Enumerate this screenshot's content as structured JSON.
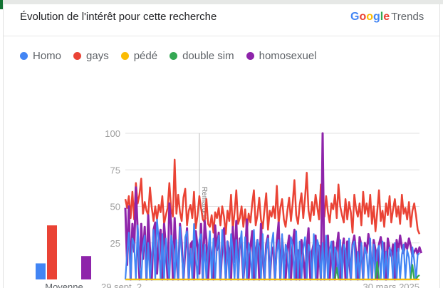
{
  "header": {
    "title": "Évolution de l'intérêt pour cette recherche",
    "brand": {
      "letters": [
        {
          "ch": "G",
          "color": "#4285F4"
        },
        {
          "ch": "o",
          "color": "#EA4335"
        },
        {
          "ch": "o",
          "color": "#FBBC05"
        },
        {
          "ch": "g",
          "color": "#4285F4"
        },
        {
          "ch": "l",
          "color": "#34A853"
        },
        {
          "ch": "e",
          "color": "#EA4335"
        }
      ],
      "product": "Trends"
    }
  },
  "colors": {
    "Homo": "#4285f4",
    "gays": "#ea4335",
    "pédé": "#fbbc04",
    "double sim": "#34a853",
    "homosexuel": "#8e24aa",
    "grid": "#e0e0e0",
    "axis_text": "#9e9e9e"
  },
  "chart_data": {
    "type": "line",
    "title": "",
    "xlabel": "",
    "ylabel": "",
    "ylim": [
      0,
      100
    ],
    "yticks": [
      25,
      50,
      75,
      100
    ],
    "x_tick_labels": [
      "29 sept. 2",
      "30 mars 2025"
    ],
    "annotation": "Remarque",
    "legend": [
      "Homo",
      "gays",
      "pédé",
      "double sim",
      "homosexuel"
    ],
    "legend_position": "top-left",
    "average": {
      "label": "Moyenne",
      "values": [
        {
          "name": "Homo",
          "value": 11
        },
        {
          "name": "gays",
          "value": 37
        },
        {
          "name": "pédé",
          "value": 0
        },
        {
          "name": "double sim",
          "value": 0
        },
        {
          "name": "homosexuel",
          "value": 16
        }
      ]
    },
    "series": [
      {
        "name": "gays",
        "values": [
          55,
          49,
          57,
          42,
          60,
          41,
          66,
          52,
          58,
          69,
          45,
          53,
          47,
          44,
          63,
          49,
          40,
          50,
          41,
          51,
          46,
          57,
          38,
          44,
          49,
          66,
          48,
          43,
          82,
          45,
          58,
          46,
          40,
          56,
          62,
          37,
          47,
          51,
          42,
          60,
          35,
          44,
          57,
          49,
          41,
          39,
          55,
          38,
          36,
          44,
          32,
          46,
          42,
          49,
          37,
          50,
          43,
          31,
          47,
          40,
          58,
          34,
          46,
          61,
          38,
          42,
          50,
          36,
          48,
          33,
          45,
          39,
          52,
          61,
          37,
          44,
          56,
          41,
          35,
          48,
          59,
          34,
          47,
          43,
          50,
          42,
          64,
          38,
          49,
          55,
          41,
          36,
          47,
          56,
          40,
          52,
          68,
          44,
          38,
          51,
          59,
          42,
          56,
          73,
          47,
          40,
          53,
          44,
          58,
          49,
          41,
          65,
          51,
          43,
          57,
          46,
          39,
          52,
          48,
          58,
          42,
          65,
          50,
          44,
          39,
          55,
          41,
          53,
          46,
          32,
          58,
          48,
          43,
          52,
          37,
          60,
          45,
          52,
          43,
          58,
          38,
          50,
          33,
          46,
          61,
          40,
          47,
          36,
          52,
          44,
          57,
          39,
          48,
          55,
          43,
          50,
          38,
          58,
          45,
          49,
          41,
          53,
          36,
          47,
          52,
          44,
          34,
          31
        ]
      },
      {
        "name": "homosexuel",
        "values": [
          49,
          10,
          50,
          0,
          38,
          19,
          63,
          33,
          0,
          38,
          14,
          36,
          0,
          44,
          20,
          0,
          34,
          39,
          4,
          28,
          34,
          0,
          38,
          22,
          0,
          52,
          38,
          0,
          42,
          15,
          0,
          38,
          25,
          0,
          20,
          35,
          0,
          24,
          26,
          0,
          33,
          22,
          4,
          38,
          0,
          40,
          27,
          0,
          24,
          16,
          0,
          37,
          20,
          32,
          0,
          21,
          35,
          0,
          26,
          19,
          0,
          36,
          12,
          40,
          0,
          28,
          22,
          0,
          16,
          41,
          0,
          22,
          33,
          0,
          18,
          27,
          0,
          38,
          16,
          0,
          24,
          30,
          0,
          19,
          22,
          0,
          26,
          39,
          0,
          28,
          13,
          0,
          21,
          30,
          0,
          24,
          34,
          0,
          20,
          0,
          27,
          16,
          0,
          22,
          35,
          0,
          19,
          25,
          30,
          0,
          23,
          0,
          100,
          0,
          24,
          30,
          0,
          17,
          26,
          0,
          22,
          32,
          0,
          19,
          28,
          0,
          26,
          15,
          0,
          24,
          30,
          18,
          0,
          29,
          23,
          0,
          25,
          18,
          31,
          22,
          0,
          27,
          20,
          0,
          24,
          29,
          19,
          25,
          0,
          28,
          21,
          16,
          24,
          0,
          27,
          19,
          30,
          22,
          18,
          25,
          21,
          28,
          23,
          16,
          19,
          21,
          17,
          22,
          18
        ]
      },
      {
        "name": "Homo",
        "values": [
          0,
          18,
          32,
          0,
          28,
          24,
          0,
          37,
          9,
          0,
          22,
          30,
          0,
          25,
          0,
          15,
          34,
          0,
          41,
          26,
          0,
          31,
          0,
          28,
          12,
          0,
          30,
          23,
          0,
          27,
          0,
          36,
          18,
          0,
          29,
          33,
          0,
          21,
          0,
          38,
          16,
          0,
          27,
          31,
          0,
          24,
          0,
          19,
          33,
          0,
          28,
          0,
          22,
          30,
          0,
          34,
          17,
          0,
          26,
          0,
          31,
          20,
          0,
          27,
          0,
          23,
          33,
          0,
          29,
          0,
          25,
          18,
          0,
          34,
          0,
          27,
          22,
          0,
          31,
          0,
          20,
          28,
          0,
          24,
          32,
          0,
          19,
          27,
          0,
          31,
          0,
          24,
          18,
          0,
          29,
          23,
          0,
          33,
          0,
          26,
          0,
          21,
          29,
          0,
          24,
          19,
          0,
          31,
          0,
          27,
          22,
          0,
          25,
          0,
          30,
          0,
          20,
          26,
          0,
          22,
          18,
          0,
          27,
          0,
          24,
          20,
          0,
          28,
          0,
          23,
          26,
          0,
          19,
          0,
          25,
          0,
          22,
          17,
          0,
          28,
          0,
          24,
          0,
          20,
          23,
          0,
          26,
          0,
          19,
          0,
          22,
          18,
          0,
          25,
          0,
          21,
          0,
          17,
          24,
          0,
          20,
          15,
          0,
          22,
          13,
          0,
          17,
          18
        ]
      },
      {
        "name": "double sim",
        "values": [
          0,
          0,
          0,
          0,
          0,
          0,
          0,
          0,
          0,
          0,
          0,
          0,
          0,
          0,
          0,
          0,
          0,
          0,
          0,
          0,
          0,
          0,
          0,
          0,
          0,
          0,
          0,
          0,
          0,
          0,
          0,
          0,
          0,
          0,
          0,
          0,
          0,
          0,
          0,
          0,
          0,
          0,
          0,
          0,
          0,
          0,
          0,
          0,
          0,
          0,
          0,
          0,
          0,
          0,
          0,
          0,
          0,
          0,
          0,
          0,
          0,
          0,
          0,
          0,
          0,
          0,
          0,
          0,
          0,
          0,
          0,
          0,
          0,
          0,
          0,
          0,
          0,
          0,
          0,
          0,
          0,
          0,
          0,
          0,
          0,
          0,
          0,
          0,
          0,
          0,
          0,
          0,
          0,
          0,
          0,
          0,
          0,
          0,
          0,
          0,
          0,
          0,
          0,
          0,
          0,
          0,
          0,
          0,
          0,
          0,
          0,
          0,
          0,
          0,
          0,
          0,
          0,
          0,
          0,
          0,
          8,
          0,
          0,
          0,
          0,
          0,
          0,
          0,
          0,
          0,
          0,
          0,
          0,
          0,
          0,
          0,
          0,
          0,
          0,
          0,
          0,
          0,
          0,
          12,
          0,
          0,
          0,
          0,
          0,
          0,
          0,
          0,
          0,
          0,
          0,
          0,
          0,
          0,
          0,
          0,
          0,
          0,
          0,
          10,
          0,
          0,
          2,
          3
        ]
      },
      {
        "name": "pédé",
        "values": [
          0,
          0,
          0,
          0,
          0,
          0,
          0,
          0,
          0,
          0,
          0,
          0,
          0,
          0,
          0,
          0,
          0,
          0,
          0,
          0,
          0,
          0,
          0,
          0,
          0,
          0,
          0,
          0,
          0,
          0,
          0,
          0,
          0,
          0,
          0,
          0,
          0,
          0,
          0,
          0,
          0,
          0,
          0,
          0,
          0,
          0,
          0,
          0,
          0,
          0,
          0,
          0,
          0,
          0,
          0,
          0,
          0,
          0,
          0,
          0,
          0,
          0,
          0,
          0,
          0,
          0,
          0,
          0,
          0,
          0,
          0,
          0,
          0,
          0,
          0,
          0,
          0,
          0,
          0,
          0,
          0,
          0,
          0,
          0,
          0,
          0,
          0,
          0,
          0,
          0,
          0,
          0,
          0,
          0,
          0,
          0,
          0,
          0,
          0,
          0,
          0,
          0,
          0,
          0,
          0,
          0,
          0,
          0,
          0,
          0,
          0,
          0,
          0,
          0,
          0,
          0,
          0,
          0,
          0,
          0,
          0,
          0,
          0,
          0,
          0,
          0,
          0,
          0,
          0,
          0,
          0,
          0,
          0,
          0,
          0,
          0,
          0,
          0,
          0,
          0,
          0,
          0,
          0,
          0,
          0,
          0,
          0,
          0,
          0,
          0,
          0,
          0,
          0,
          0,
          0,
          0,
          0,
          0,
          0,
          0,
          0,
          0,
          0,
          0,
          0,
          0,
          0,
          0
        ]
      }
    ]
  }
}
